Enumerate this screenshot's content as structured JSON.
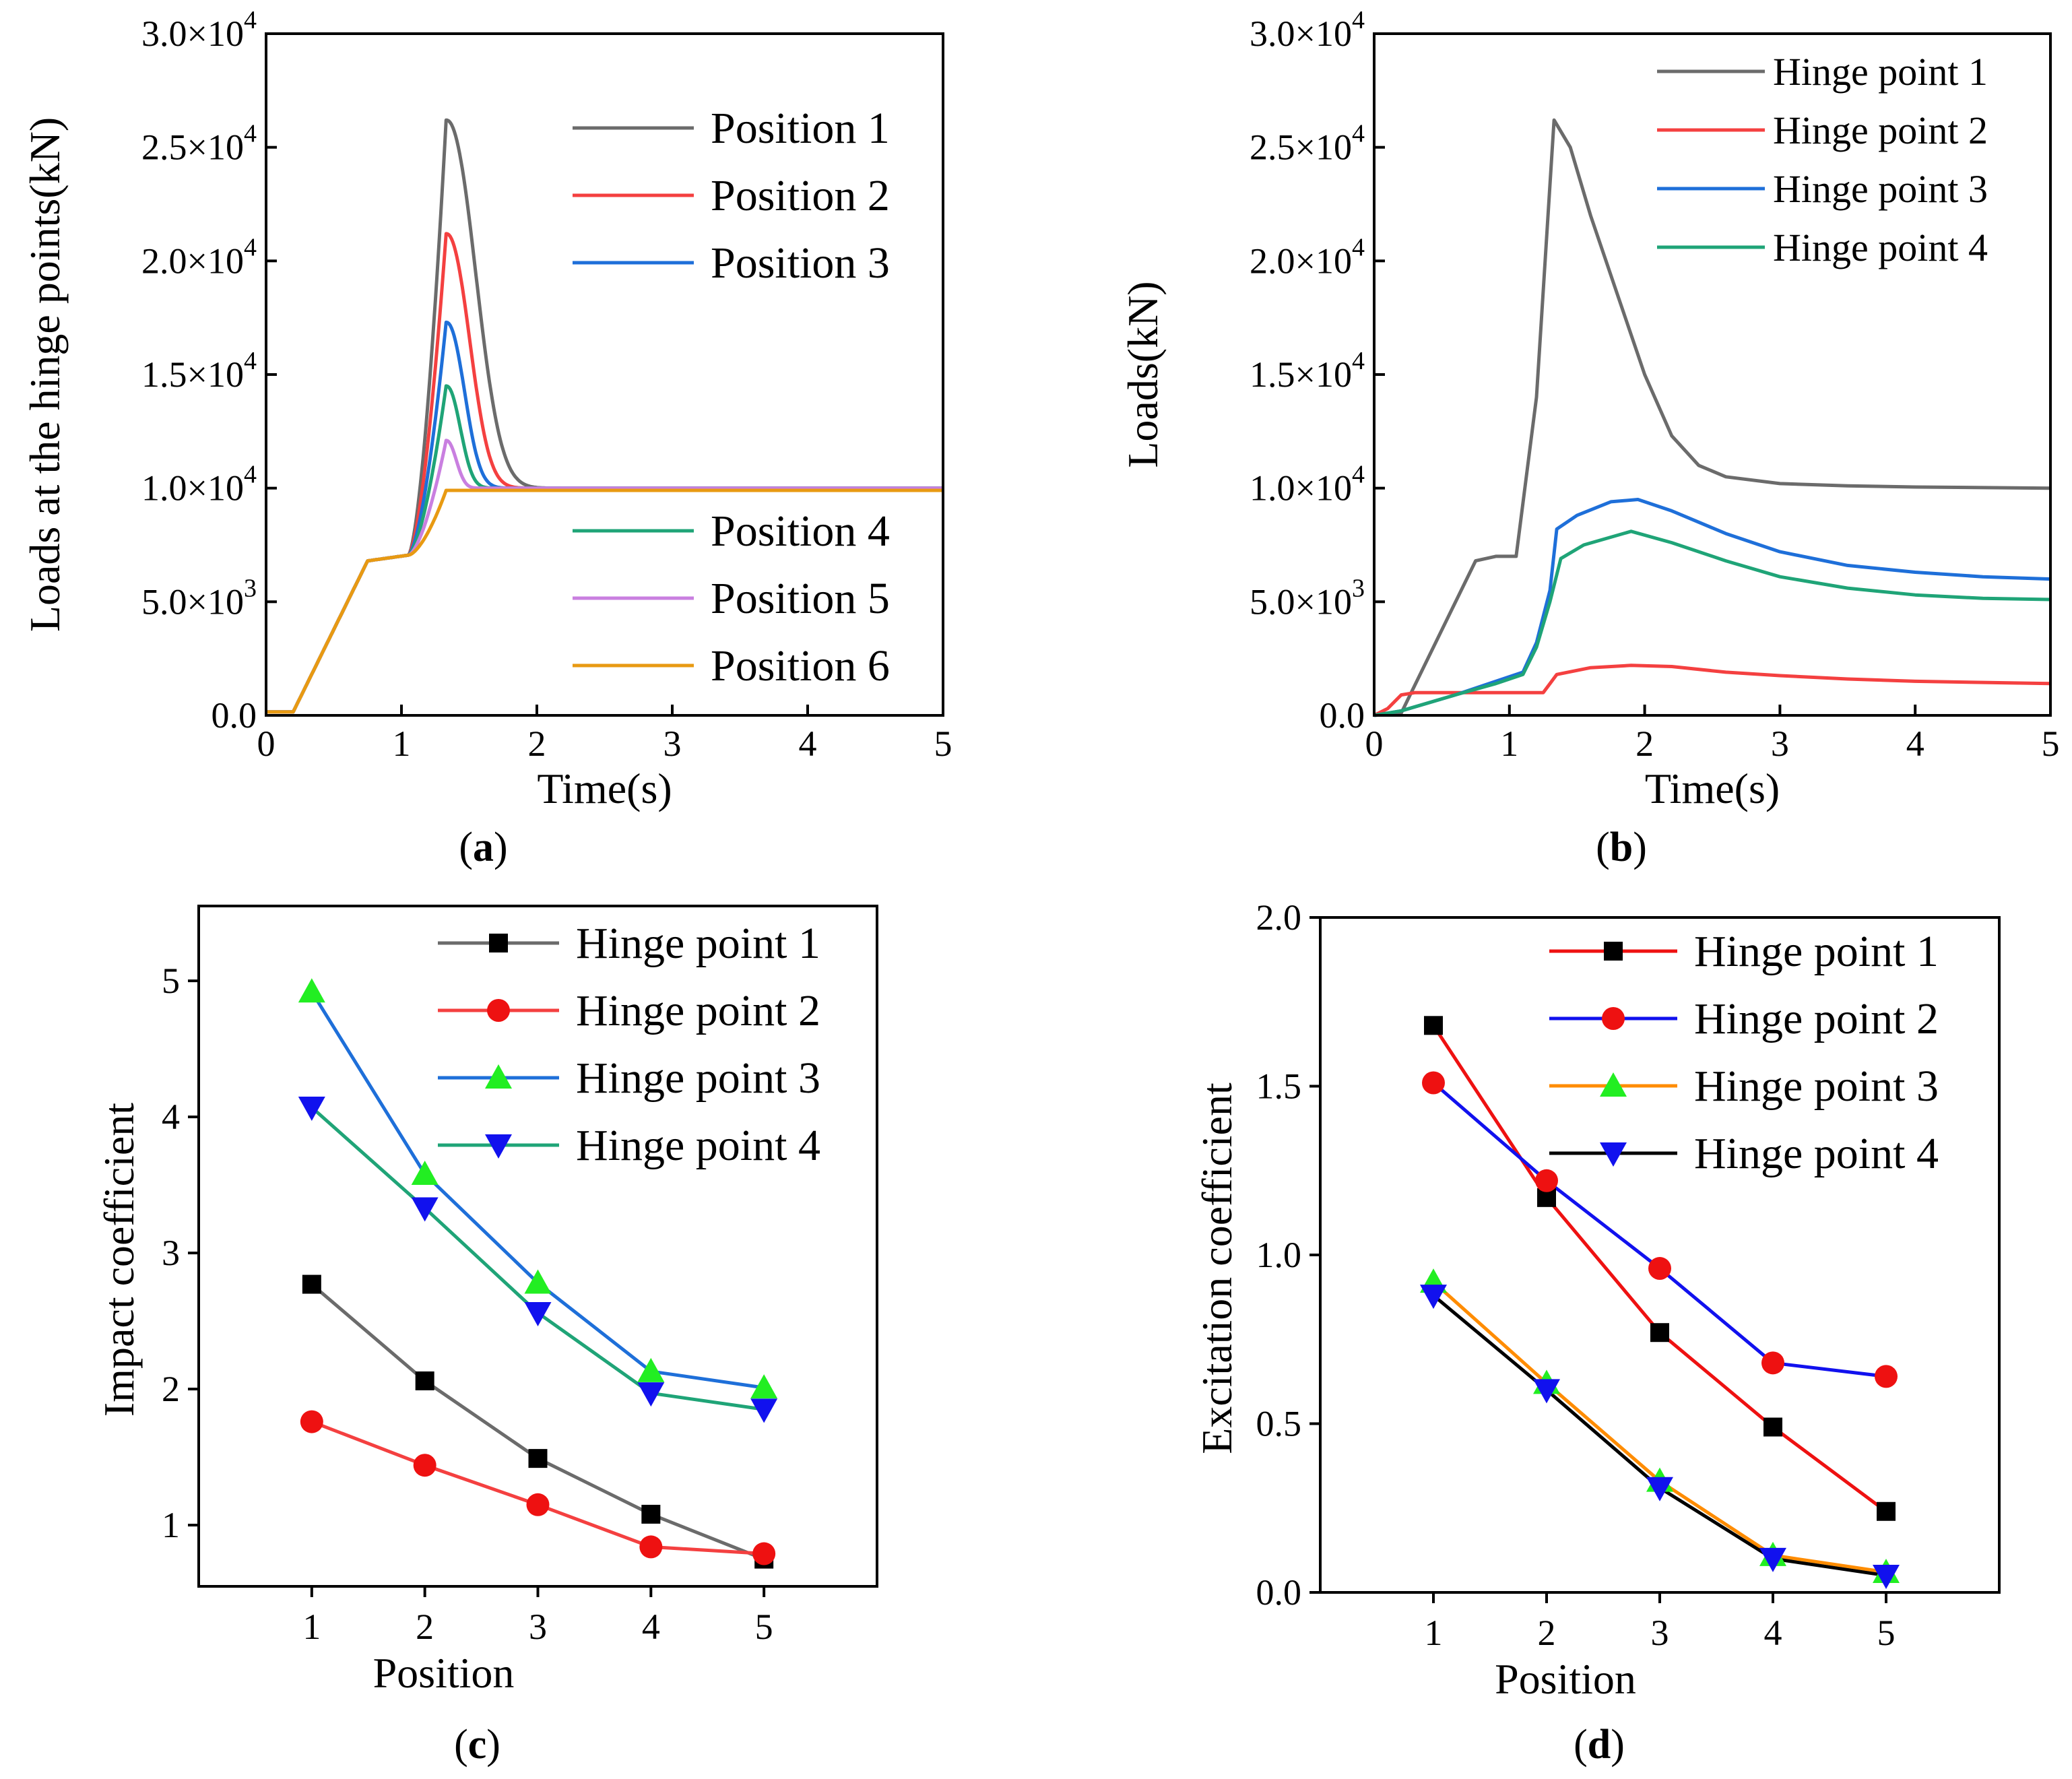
{
  "colors": {
    "gray": "#6b6b6b",
    "red": "#f44040",
    "blue": "#1e6fd9",
    "green": "#1fa477",
    "purple": "#c97fe0",
    "orange": "#e89a12",
    "green_marker": "#22ee22",
    "pure_red": "#ee1111",
    "pure_blue": "#1111ee",
    "black": "#000000",
    "orange_line": "#ff8c00"
  },
  "chart_data": [
    {
      "id": "a",
      "type": "line",
      "caption": "a",
      "xlabel": "Time(s)",
      "ylabel": "Loads at the hinge points(kN)",
      "xlim": [
        0,
        5
      ],
      "ylim": [
        0,
        30000
      ],
      "xticks": [
        "0",
        "1",
        "2",
        "3",
        "4",
        "5"
      ],
      "yticks": [
        {
          "mantissa": "0.0",
          "exp": ""
        },
        {
          "mantissa": "5.0×10",
          "exp": "3"
        },
        {
          "mantissa": "1.0×10",
          "exp": "4"
        },
        {
          "mantissa": "1.5×10",
          "exp": "4"
        },
        {
          "mantissa": "2.0×10",
          "exp": "4"
        },
        {
          "mantissa": "2.5×10",
          "exp": "4"
        },
        {
          "mantissa": "3.0×10",
          "exp": "4"
        }
      ],
      "legend_top": [
        "Position 1",
        "Position 2",
        "Position 3"
      ],
      "legend_bottom": [
        "Position 4",
        "Position 5",
        "Position 6"
      ],
      "series": [
        {
          "name": "Position 1",
          "color": "gray",
          "peak": 26200,
          "end": 10000,
          "tau": 0.29
        },
        {
          "name": "Position 2",
          "color": "red",
          "peak": 21200,
          "end": 10000,
          "tau": 0.23
        },
        {
          "name": "Position 3",
          "color": "blue",
          "peak": 17300,
          "end": 10000,
          "tau": 0.18
        },
        {
          "name": "Position 4",
          "color": "green",
          "peak": 14500,
          "end": 10000,
          "tau": 0.14
        },
        {
          "name": "Position 5",
          "color": "purple",
          "peak": 12100,
          "end": 10000,
          "tau": 0.1
        },
        {
          "name": "Position 6",
          "color": "orange",
          "peak": 9900,
          "end": 9900,
          "tau": 0.05
        }
      ]
    },
    {
      "id": "b",
      "type": "line",
      "caption": "b",
      "xlabel": "Time(s)",
      "ylabel": "Loads(kN)",
      "xlim": [
        0,
        5
      ],
      "ylim": [
        0,
        30000
      ],
      "xticks": [
        "0",
        "1",
        "2",
        "3",
        "4",
        "5"
      ],
      "yticks": [
        {
          "mantissa": "0.0",
          "exp": ""
        },
        {
          "mantissa": "5.0×10",
          "exp": "3"
        },
        {
          "mantissa": "1.0×10",
          "exp": "4"
        },
        {
          "mantissa": "1.5×10",
          "exp": "4"
        },
        {
          "mantissa": "2.0×10",
          "exp": "4"
        },
        {
          "mantissa": "2.5×10",
          "exp": "4"
        },
        {
          "mantissa": "3.0×10",
          "exp": "4"
        }
      ],
      "legend": [
        "Hinge point 1",
        "Hinge point 2",
        "Hinge point 3",
        "Hinge point 4"
      ],
      "series": [
        {
          "name": "Hinge point 1",
          "color": "gray",
          "points": [
            [
              0,
              0
            ],
            [
              0.2,
              100
            ],
            [
              0.75,
              6800
            ],
            [
              0.9,
              7000
            ],
            [
              1.05,
              7000
            ],
            [
              1.2,
              14000
            ],
            [
              1.33,
              26200
            ],
            [
              1.45,
              25000
            ],
            [
              1.6,
              22000
            ],
            [
              1.8,
              18500
            ],
            [
              2.0,
              15000
            ],
            [
              2.2,
              12300
            ],
            [
              2.4,
              11000
            ],
            [
              2.6,
              10500
            ],
            [
              3.0,
              10200
            ],
            [
              3.5,
              10100
            ],
            [
              4.0,
              10050
            ],
            [
              5.0,
              10000
            ]
          ]
        },
        {
          "name": "Hinge point 2",
          "color": "red",
          "points": [
            [
              0,
              0
            ],
            [
              0.1,
              300
            ],
            [
              0.2,
              900
            ],
            [
              0.3,
              1000
            ],
            [
              1.25,
              1000
            ],
            [
              1.35,
              1800
            ],
            [
              1.6,
              2100
            ],
            [
              1.9,
              2200
            ],
            [
              2.2,
              2150
            ],
            [
              2.6,
              1900
            ],
            [
              3.0,
              1750
            ],
            [
              3.5,
              1600
            ],
            [
              4.0,
              1500
            ],
            [
              5.0,
              1400
            ]
          ]
        },
        {
          "name": "Hinge point 3",
          "color": "blue",
          "points": [
            [
              0,
              0
            ],
            [
              0.2,
              200
            ],
            [
              0.6,
              900
            ],
            [
              0.9,
              1500
            ],
            [
              1.1,
              1900
            ],
            [
              1.2,
              3200
            ],
            [
              1.3,
              5500
            ],
            [
              1.35,
              8200
            ],
            [
              1.5,
              8800
            ],
            [
              1.75,
              9400
            ],
            [
              1.95,
              9500
            ],
            [
              2.2,
              9000
            ],
            [
              2.6,
              8000
            ],
            [
              3.0,
              7200
            ],
            [
              3.5,
              6600
            ],
            [
              4.0,
              6300
            ],
            [
              4.5,
              6100
            ],
            [
              5.0,
              6000
            ]
          ]
        },
        {
          "name": "Hinge point 4",
          "color": "green",
          "points": [
            [
              0,
              0
            ],
            [
              0.2,
              200
            ],
            [
              0.6,
              900
            ],
            [
              0.9,
              1400
            ],
            [
              1.1,
              1800
            ],
            [
              1.2,
              3000
            ],
            [
              1.3,
              5000
            ],
            [
              1.38,
              6900
            ],
            [
              1.55,
              7500
            ],
            [
              1.9,
              8100
            ],
            [
              2.2,
              7600
            ],
            [
              2.6,
              6800
            ],
            [
              3.0,
              6100
            ],
            [
              3.5,
              5600
            ],
            [
              4.0,
              5300
            ],
            [
              4.5,
              5150
            ],
            [
              5.0,
              5100
            ]
          ]
        }
      ]
    },
    {
      "id": "c",
      "type": "line",
      "caption": "c",
      "xlabel": "Position",
      "ylabel": "Impact coefficient",
      "xlim": [
        0,
        6
      ],
      "ylim": [
        0.55,
        5.55
      ],
      "xticks": [
        "1",
        "2",
        "3",
        "4",
        "5"
      ],
      "yticks": [
        "1",
        "2",
        "3",
        "4",
        "5"
      ],
      "legend": [
        "Hinge point 1",
        "Hinge point 2",
        "Hinge point 3",
        "Hinge point 4"
      ],
      "x": [
        1,
        2,
        3,
        4,
        5
      ],
      "series": [
        {
          "name": "Hinge point 1",
          "line": "gray",
          "fill": "black",
          "marker": "square",
          "values": [
            2.77,
            2.06,
            1.49,
            1.08,
            0.75
          ]
        },
        {
          "name": "Hinge point 2",
          "line": "red",
          "fill": "pure_red",
          "marker": "circle",
          "values": [
            1.76,
            1.44,
            1.15,
            0.84,
            0.79
          ]
        },
        {
          "name": "Hinge point 3",
          "line": "blue",
          "fill": "green_marker",
          "marker": "triangle-up",
          "values": [
            4.92,
            3.58,
            2.78,
            2.13,
            2.01
          ]
        },
        {
          "name": "Hinge point 4",
          "line": "green",
          "fill": "pure_blue",
          "marker": "triangle-down",
          "values": [
            4.07,
            3.33,
            2.56,
            1.97,
            1.85
          ]
        }
      ]
    },
    {
      "id": "d",
      "type": "line",
      "caption": "d",
      "xlabel": "Position",
      "ylabel": "Excitation coefficient",
      "xlim": [
        0,
        6
      ],
      "ylim": [
        0,
        2.0
      ],
      "xticks": [
        "1",
        "2",
        "3",
        "4",
        "5"
      ],
      "yticks": [
        "0.0",
        "0.5",
        "1.0",
        "1.5",
        "2.0"
      ],
      "legend": [
        "Hinge point 1",
        "Hinge point 2",
        "Hinge point 3",
        "Hinge point 4"
      ],
      "x": [
        1,
        2,
        3,
        4,
        5
      ],
      "series": [
        {
          "name": "Hinge point 1",
          "line": "pure_red",
          "fill": "black",
          "marker": "square",
          "values": [
            1.68,
            1.17,
            0.77,
            0.49,
            0.24
          ]
        },
        {
          "name": "Hinge point 2",
          "line": "pure_blue",
          "fill": "pure_red",
          "marker": "circle",
          "values": [
            1.51,
            1.22,
            0.96,
            0.68,
            0.64
          ]
        },
        {
          "name": "Hinge point 3",
          "line": "orange_line",
          "fill": "green_marker",
          "marker": "triangle-up",
          "values": [
            0.92,
            0.62,
            0.33,
            0.11,
            0.06
          ]
        },
        {
          "name": "Hinge point 4",
          "line": "black",
          "fill": "pure_blue",
          "marker": "triangle-down",
          "values": [
            0.88,
            0.6,
            0.31,
            0.1,
            0.05
          ]
        }
      ]
    }
  ]
}
